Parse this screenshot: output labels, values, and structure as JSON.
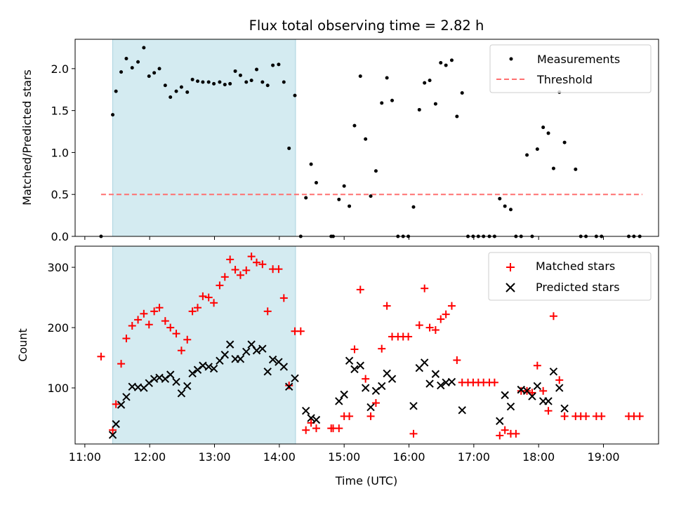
{
  "chart_data": [
    {
      "type": "scatter",
      "title": "Flux total observing time = 2.82 h",
      "xlabel": "",
      "ylabel": "Matched/Predicted stars",
      "ylim": [
        0,
        2.35
      ],
      "xlim": [
        10.85,
        19.85
      ],
      "yticks": [
        0.0,
        0.5,
        1.0,
        1.5,
        2.0
      ],
      "ytick_labels": [
        "0.0",
        "0.5",
        "1.0",
        "1.5",
        "2.0"
      ],
      "highlight_span": [
        11.43,
        14.25
      ],
      "threshold": {
        "name": "Threshold",
        "y": 0.5,
        "x_range": [
          11.25,
          19.6
        ],
        "color": "#ff7070"
      },
      "legend": {
        "position": "top-right",
        "entries": [
          "Measurements",
          "Threshold"
        ]
      },
      "series": [
        {
          "name": "Measurements",
          "color": "#000000",
          "x": [
            11.25,
            11.43,
            11.48,
            11.56,
            11.64,
            11.73,
            11.82,
            11.91,
            11.99,
            12.07,
            12.15,
            12.24,
            12.32,
            12.41,
            12.49,
            12.58,
            12.66,
            12.74,
            12.82,
            12.91,
            12.99,
            13.08,
            13.16,
            13.24,
            13.32,
            13.4,
            13.49,
            13.57,
            13.65,
            13.74,
            13.82,
            13.9,
            13.99,
            14.07,
            14.15,
            14.24,
            14.33,
            14.41,
            14.49,
            14.57,
            14.8,
            14.83,
            14.92,
            15.0,
            15.08,
            15.16,
            15.25,
            15.33,
            15.41,
            15.49,
            15.58,
            15.66,
            15.74,
            15.83,
            15.91,
            15.99,
            16.07,
            16.16,
            16.24,
            16.32,
            16.41,
            16.49,
            16.57,
            16.66,
            16.74,
            16.82,
            16.91,
            16.99,
            17.07,
            17.15,
            17.24,
            17.32,
            17.4,
            17.48,
            17.57,
            17.65,
            17.73,
            17.82,
            17.9,
            17.98,
            18.07,
            18.15,
            18.23,
            18.32,
            18.4,
            18.57,
            18.65,
            18.73,
            18.89,
            18.97,
            19.39,
            19.47,
            19.56
          ],
          "y": [
            0.0,
            1.45,
            1.73,
            1.96,
            2.12,
            2.01,
            2.08,
            2.25,
            1.91,
            1.95,
            2.0,
            1.8,
            1.66,
            1.73,
            1.78,
            1.72,
            1.87,
            1.85,
            1.84,
            1.84,
            1.82,
            1.84,
            1.81,
            1.82,
            1.97,
            1.92,
            1.84,
            1.86,
            1.99,
            1.84,
            1.8,
            2.04,
            2.05,
            1.84,
            1.05,
            1.68,
            0.0,
            0.46,
            0.86,
            0.64,
            0.0,
            0.0,
            0.44,
            0.6,
            0.36,
            1.32,
            1.91,
            1.16,
            0.48,
            0.78,
            1.59,
            1.89,
            1.62,
            0.0,
            0.0,
            0.0,
            0.35,
            1.51,
            1.83,
            1.86,
            1.58,
            2.07,
            2.04,
            2.1,
            1.43,
            1.71,
            0.0,
            0.0,
            0.0,
            0.0,
            0.0,
            0.0,
            0.45,
            0.36,
            0.32,
            0.0,
            0.0,
            0.97,
            0.0,
            1.04,
            1.3,
            1.23,
            0.81,
            1.72,
            1.12,
            0.8,
            0.0,
            0.0,
            0.0,
            0.0,
            0.0,
            0.0,
            0.0
          ]
        }
      ]
    },
    {
      "type": "scatter",
      "title": "",
      "xlabel": "Time (UTC)",
      "ylabel": "Count",
      "ylim": [
        7,
        335
      ],
      "xlim": [
        10.85,
        19.85
      ],
      "yticks": [
        100,
        200,
        300
      ],
      "ytick_labels": [
        "100",
        "200",
        "300"
      ],
      "xticks": [
        11,
        12,
        13,
        14,
        15,
        16,
        17,
        18,
        19
      ],
      "xtick_labels": [
        "11:00",
        "12:00",
        "13:00",
        "14:00",
        "15:00",
        "16:00",
        "17:00",
        "18:00",
        "19:00"
      ],
      "highlight_span": [
        11.43,
        14.25
      ],
      "legend": {
        "position": "top-right",
        "entries": [
          "Matched stars",
          "Predicted stars"
        ]
      },
      "series": [
        {
          "name": "Matched stars",
          "marker": "+",
          "color": "#ff0000",
          "x": [
            11.25,
            11.43,
            11.48,
            11.56,
            11.64,
            11.73,
            11.82,
            11.91,
            11.99,
            12.07,
            12.15,
            12.24,
            12.32,
            12.41,
            12.49,
            12.58,
            12.66,
            12.74,
            12.82,
            12.91,
            12.99,
            13.08,
            13.16,
            13.24,
            13.32,
            13.4,
            13.49,
            13.57,
            13.65,
            13.74,
            13.82,
            13.9,
            13.99,
            14.07,
            14.15,
            14.24,
            14.33,
            14.41,
            14.49,
            14.57,
            14.8,
            14.83,
            14.92,
            15.0,
            15.08,
            15.16,
            15.25,
            15.33,
            15.41,
            15.49,
            15.58,
            15.66,
            15.74,
            15.83,
            15.91,
            15.99,
            16.07,
            16.16,
            16.24,
            16.32,
            16.41,
            16.49,
            16.57,
            16.66,
            16.74,
            16.82,
            16.91,
            16.99,
            17.07,
            17.15,
            17.24,
            17.32,
            17.4,
            17.48,
            17.57,
            17.65,
            17.73,
            17.82,
            17.9,
            17.98,
            18.07,
            18.15,
            18.23,
            18.32,
            18.4,
            18.57,
            18.65,
            18.73,
            18.89,
            18.97,
            19.39,
            19.47,
            19.56
          ],
          "y": [
            152,
            30,
            73,
            140,
            182,
            203,
            213,
            223,
            205,
            227,
            233,
            211,
            200,
            190,
            162,
            180,
            227,
            233,
            252,
            250,
            241,
            270,
            284,
            313,
            296,
            287,
            295,
            318,
            308,
            305,
            227,
            297,
            297,
            249,
            104,
            194,
            194,
            30,
            42,
            33,
            33,
            33,
            33,
            53,
            53,
            164,
            263,
            115,
            53,
            75,
            165,
            236,
            185,
            185,
            185,
            185,
            24,
            204,
            265,
            200,
            196,
            214,
            222,
            236,
            146,
            109,
            109,
            109,
            109,
            109,
            109,
            109,
            21,
            30,
            24,
            24,
            95,
            95,
            92,
            137,
            95,
            62,
            219,
            113,
            53,
            53,
            53,
            53,
            53,
            53,
            53,
            53,
            53
          ]
        },
        {
          "name": "Predicted stars",
          "marker": "x",
          "color": "#000000",
          "x": [
            11.43,
            11.48,
            11.56,
            11.64,
            11.73,
            11.82,
            11.91,
            11.99,
            12.07,
            12.15,
            12.24,
            12.32,
            12.41,
            12.49,
            12.58,
            12.66,
            12.74,
            12.82,
            12.91,
            12.99,
            13.08,
            13.16,
            13.24,
            13.32,
            13.4,
            13.49,
            13.57,
            13.65,
            13.74,
            13.82,
            13.9,
            13.99,
            14.07,
            14.15,
            14.24,
            14.41,
            14.49,
            14.57,
            14.92,
            15.0,
            15.08,
            15.16,
            15.25,
            15.33,
            15.41,
            15.49,
            15.58,
            15.66,
            15.74,
            16.07,
            16.16,
            16.24,
            16.32,
            16.41,
            16.49,
            16.57,
            16.66,
            16.82,
            17.4,
            17.48,
            17.57,
            17.73,
            17.82,
            17.9,
            17.98,
            18.07,
            18.15,
            18.23,
            18.32,
            18.4
          ],
          "y": [
            22,
            40,
            72,
            85,
            102,
            101,
            100,
            108,
            115,
            117,
            115,
            122,
            110,
            91,
            103,
            124,
            130,
            137,
            135,
            132,
            145,
            155,
            172,
            148,
            148,
            160,
            172,
            162,
            165,
            127,
            147,
            143,
            135,
            102,
            116,
            62,
            50,
            47,
            78,
            89,
            145,
            131,
            137,
            100,
            68,
            95,
            103,
            124,
            115,
            70,
            133,
            142,
            107,
            123,
            104,
            109,
            110,
            63,
            45,
            88,
            69,
            97,
            95,
            86,
            103,
            78,
            78,
            127,
            100,
            66
          ]
        }
      ]
    }
  ]
}
